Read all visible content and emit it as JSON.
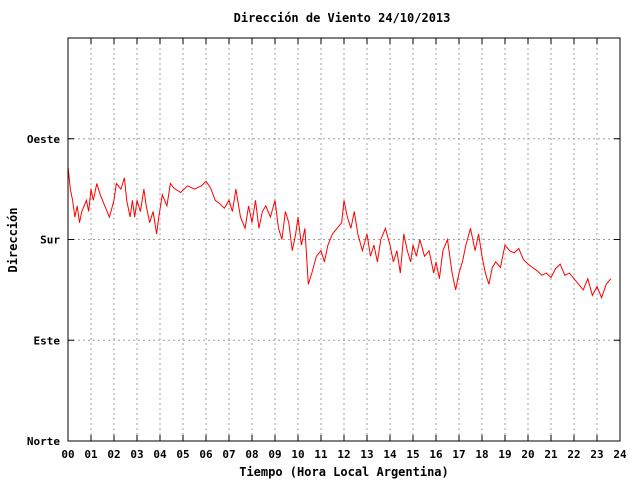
{
  "chart_data": {
    "type": "line",
    "title": "Dirección de Viento 24/10/2013",
    "xlabel": "Tiempo (Hora Local Argentina)",
    "ylabel": "Dirección",
    "x_ticks": [
      "00",
      "01",
      "02",
      "03",
      "04",
      "05",
      "06",
      "07",
      "08",
      "09",
      "10",
      "11",
      "12",
      "13",
      "14",
      "15",
      "16",
      "17",
      "18",
      "19",
      "20",
      "21",
      "22",
      "23",
      "24"
    ],
    "xlim": [
      0,
      24
    ],
    "y_ticks": [
      {
        "label": "Norte",
        "value": 0
      },
      {
        "label": "Este",
        "value": 90
      },
      {
        "label": "Sur",
        "value": 180
      },
      {
        "label": "Oeste",
        "value": 270
      }
    ],
    "ylim": [
      0,
      360
    ],
    "grid": true,
    "series": [
      {
        "color": "#ff0000",
        "points": [
          [
            0.0,
            245
          ],
          [
            0.1,
            225
          ],
          [
            0.2,
            215
          ],
          [
            0.3,
            200
          ],
          [
            0.4,
            210
          ],
          [
            0.5,
            195
          ],
          [
            0.6,
            205
          ],
          [
            0.8,
            215
          ],
          [
            0.9,
            205
          ],
          [
            1.0,
            225
          ],
          [
            1.1,
            215
          ],
          [
            1.25,
            230
          ],
          [
            1.4,
            220
          ],
          [
            1.6,
            210
          ],
          [
            1.8,
            200
          ],
          [
            2.0,
            215
          ],
          [
            2.1,
            230
          ],
          [
            2.3,
            225
          ],
          [
            2.45,
            235
          ],
          [
            2.55,
            215
          ],
          [
            2.7,
            200
          ],
          [
            2.8,
            215
          ],
          [
            2.9,
            200
          ],
          [
            3.0,
            215
          ],
          [
            3.15,
            205
          ],
          [
            3.3,
            225
          ],
          [
            3.4,
            210
          ],
          [
            3.55,
            195
          ],
          [
            3.7,
            205
          ],
          [
            3.85,
            185
          ],
          [
            3.95,
            200
          ],
          [
            4.1,
            220
          ],
          [
            4.3,
            210
          ],
          [
            4.45,
            230
          ],
          [
            4.6,
            226
          ],
          [
            4.9,
            222
          ],
          [
            5.2,
            228
          ],
          [
            5.5,
            225
          ],
          [
            5.8,
            228
          ],
          [
            6.0,
            232
          ],
          [
            6.2,
            226
          ],
          [
            6.4,
            215
          ],
          [
            6.6,
            212
          ],
          [
            6.8,
            208
          ],
          [
            7.0,
            215
          ],
          [
            7.15,
            205
          ],
          [
            7.3,
            225
          ],
          [
            7.5,
            200
          ],
          [
            7.7,
            190
          ],
          [
            7.85,
            210
          ],
          [
            8.0,
            195
          ],
          [
            8.15,
            215
          ],
          [
            8.3,
            190
          ],
          [
            8.45,
            205
          ],
          [
            8.6,
            210
          ],
          [
            8.8,
            200
          ],
          [
            9.0,
            215
          ],
          [
            9.15,
            190
          ],
          [
            9.3,
            180
          ],
          [
            9.45,
            205
          ],
          [
            9.6,
            195
          ],
          [
            9.75,
            170
          ],
          [
            9.9,
            185
          ],
          [
            10.0,
            200
          ],
          [
            10.15,
            175
          ],
          [
            10.3,
            190
          ],
          [
            10.45,
            140
          ],
          [
            10.6,
            150
          ],
          [
            10.8,
            165
          ],
          [
            11.0,
            170
          ],
          [
            11.15,
            160
          ],
          [
            11.3,
            175
          ],
          [
            11.5,
            185
          ],
          [
            11.7,
            190
          ],
          [
            11.9,
            195
          ],
          [
            12.0,
            215
          ],
          [
            12.15,
            200
          ],
          [
            12.3,
            190
          ],
          [
            12.45,
            205
          ],
          [
            12.6,
            185
          ],
          [
            12.8,
            170
          ],
          [
            13.0,
            185
          ],
          [
            13.15,
            165
          ],
          [
            13.3,
            175
          ],
          [
            13.45,
            160
          ],
          [
            13.6,
            180
          ],
          [
            13.8,
            190
          ],
          [
            14.0,
            175
          ],
          [
            14.15,
            160
          ],
          [
            14.3,
            170
          ],
          [
            14.45,
            150
          ],
          [
            14.6,
            185
          ],
          [
            14.75,
            170
          ],
          [
            14.9,
            160
          ],
          [
            15.0,
            175
          ],
          [
            15.15,
            165
          ],
          [
            15.3,
            180
          ],
          [
            15.5,
            165
          ],
          [
            15.7,
            170
          ],
          [
            15.9,
            150
          ],
          [
            16.0,
            160
          ],
          [
            16.15,
            145
          ],
          [
            16.3,
            170
          ],
          [
            16.5,
            180
          ],
          [
            16.7,
            150
          ],
          [
            16.85,
            135
          ],
          [
            17.0,
            150
          ],
          [
            17.15,
            160
          ],
          [
            17.3,
            175
          ],
          [
            17.5,
            190
          ],
          [
            17.7,
            170
          ],
          [
            17.85,
            185
          ],
          [
            18.0,
            165
          ],
          [
            18.15,
            150
          ],
          [
            18.3,
            140
          ],
          [
            18.45,
            155
          ],
          [
            18.6,
            160
          ],
          [
            18.8,
            155
          ],
          [
            19.0,
            175
          ],
          [
            19.2,
            170
          ],
          [
            19.4,
            168
          ],
          [
            19.6,
            172
          ],
          [
            19.8,
            162
          ],
          [
            20.0,
            158
          ],
          [
            20.2,
            155
          ],
          [
            20.4,
            152
          ],
          [
            20.6,
            148
          ],
          [
            20.8,
            150
          ],
          [
            21.0,
            146
          ],
          [
            21.2,
            154
          ],
          [
            21.4,
            158
          ],
          [
            21.6,
            148
          ],
          [
            21.8,
            150
          ],
          [
            22.0,
            145
          ],
          [
            22.2,
            140
          ],
          [
            22.4,
            135
          ],
          [
            22.6,
            145
          ],
          [
            22.8,
            130
          ],
          [
            23.0,
            138
          ],
          [
            23.2,
            128
          ],
          [
            23.4,
            140
          ],
          [
            23.6,
            145
          ]
        ]
      }
    ]
  }
}
